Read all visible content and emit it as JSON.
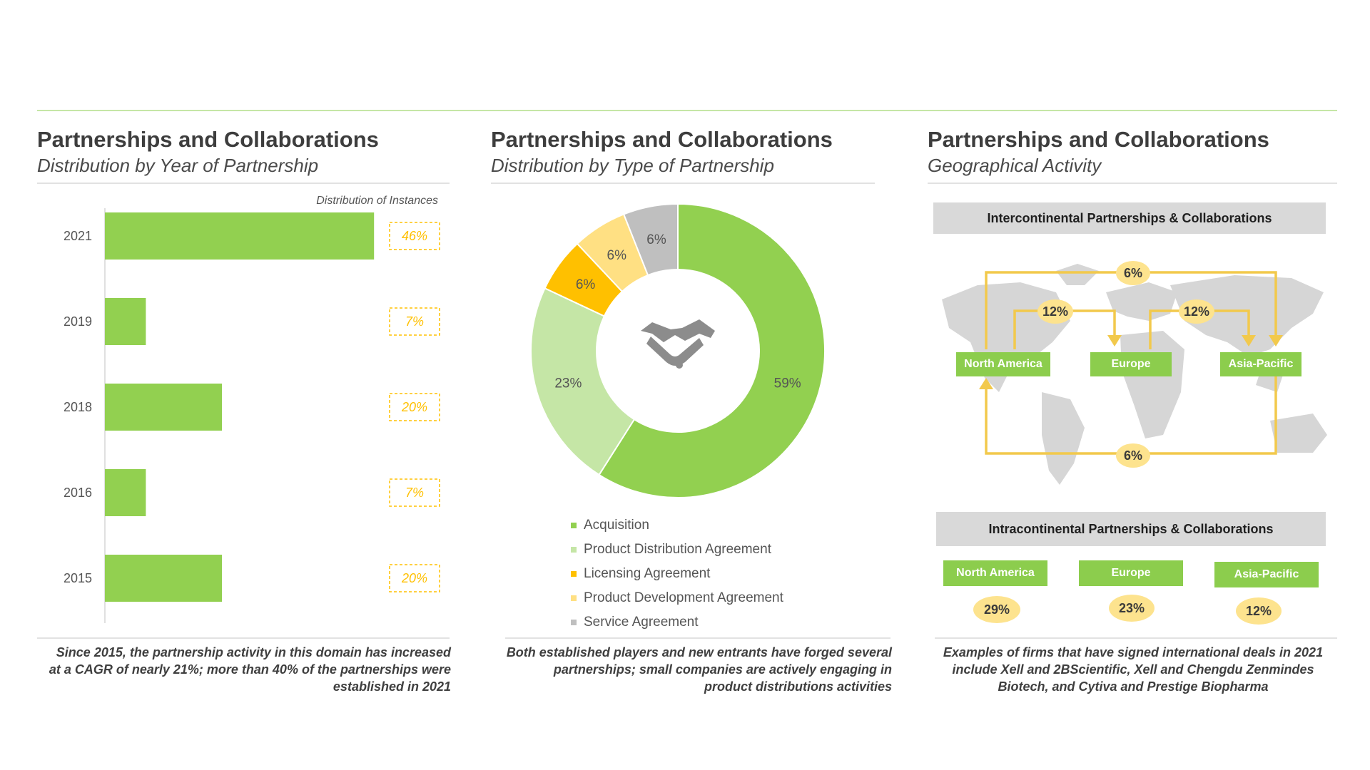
{
  "panels": [
    {
      "title": "Partnerships and Collaborations",
      "subtitle": "Distribution by Year of Partnership",
      "caption": "Since 2015, the partnership activity in this domain has increased at a CAGR of nearly 21%; more than 40% of the partnerships were established in 2021"
    },
    {
      "title": "Partnerships and Collaborations",
      "subtitle": "Distribution by Type of Partnership",
      "caption": "Both established players and new entrants have forged several partnerships; small companies are actively engaging in product distributions activities"
    },
    {
      "title": "Partnerships and Collaborations",
      "subtitle": "Geographical Activity",
      "caption": "Examples of firms that have signed international deals in 2021 include Xell and 2BScientific, Xell and Chengdu Zenmindes Biotech, and Cytiva and Prestige Biopharma"
    }
  ],
  "chart_data": [
    {
      "type": "bar",
      "orientation": "horizontal",
      "title": "Distribution by Year of Partnership",
      "value_label_header": "Distribution of Instances",
      "categories": [
        "2021",
        "2019",
        "2018",
        "2016",
        "2015"
      ],
      "values": [
        46,
        7,
        20,
        7,
        20
      ],
      "value_labels": [
        "46%",
        "7%",
        "20%",
        "7%",
        "20%"
      ],
      "color": "#92d050",
      "label_color": "#ffc000"
    },
    {
      "type": "pie",
      "donut": true,
      "title": "Distribution by Type of Partnership",
      "labels": [
        "Acquisition",
        "Product Distribution Agreement",
        "Licensing Agreement",
        "Product Development Agreement",
        "Service Agreement"
      ],
      "values": [
        59,
        23,
        6,
        6,
        6
      ],
      "value_labels": [
        "59%",
        "23%",
        "6%",
        "6%",
        "6%"
      ],
      "colors": [
        "#92d050",
        "#c5e6a6",
        "#ffc000",
        "#ffe083",
        "#bfbfbf"
      ],
      "center_icon": "handshake-icon",
      "legend_position": "bottom"
    }
  ],
  "geo": {
    "inter_header": "Intercontinental Partnerships & Collaborations",
    "intra_header": "Intracontinental Partnerships & Collaborations",
    "regions": [
      "North America",
      "Europe",
      "Asia-Pacific"
    ],
    "inter_flows": [
      {
        "label": "6%",
        "route": "North America to Asia-Pacific (top)"
      },
      {
        "label": "12%",
        "route": "North America to Europe"
      },
      {
        "label": "12%",
        "route": "Europe to Asia-Pacific"
      },
      {
        "label": "6%",
        "route": "Asia-Pacific to North America (bottom)"
      }
    ],
    "intra_values": [
      "29%",
      "23%",
      "12%"
    ],
    "map_icon": "world-map-icon",
    "colors": {
      "box": "#8ccd4d",
      "badge": "#fde38e",
      "arrow": "#f2c94c",
      "header": "#d9d9d9"
    }
  }
}
